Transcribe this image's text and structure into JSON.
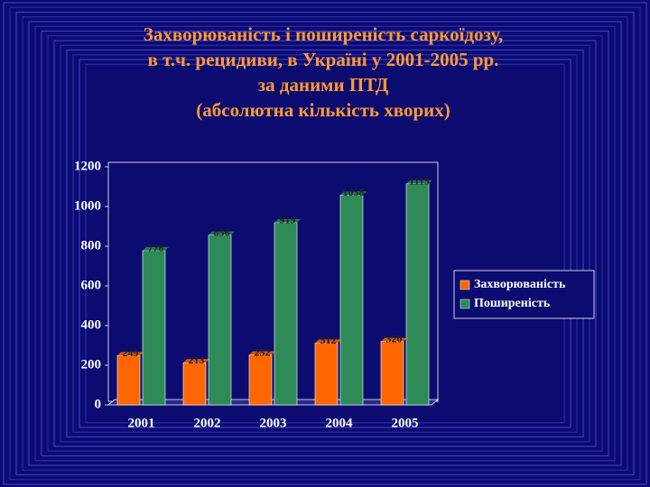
{
  "chart_data": {
    "type": "bar",
    "title": [
      "Захворюваність і поширеність  саркоїдозу,",
      "в т.ч. рецидиви, в Україні у 2001-2005 рр.",
      "за даними ПТД",
      "(абсолютна кількість хворих)"
    ],
    "categories": [
      "2001",
      "2002",
      "2003",
      "2004",
      "2005"
    ],
    "series": [
      {
        "name": "Захворюваність",
        "color": "#ff6600",
        "values": [
          249,
          213,
          252,
          312,
          320
        ]
      },
      {
        "name": "Поширеність",
        "color": "#2e8b57",
        "values": [
          778,
          856,
          919,
          1058,
          1115
        ]
      }
    ],
    "ylim": [
      0,
      1200
    ],
    "yticks": [
      0,
      200,
      400,
      600,
      800,
      1000,
      1200
    ],
    "legend": "right"
  }
}
